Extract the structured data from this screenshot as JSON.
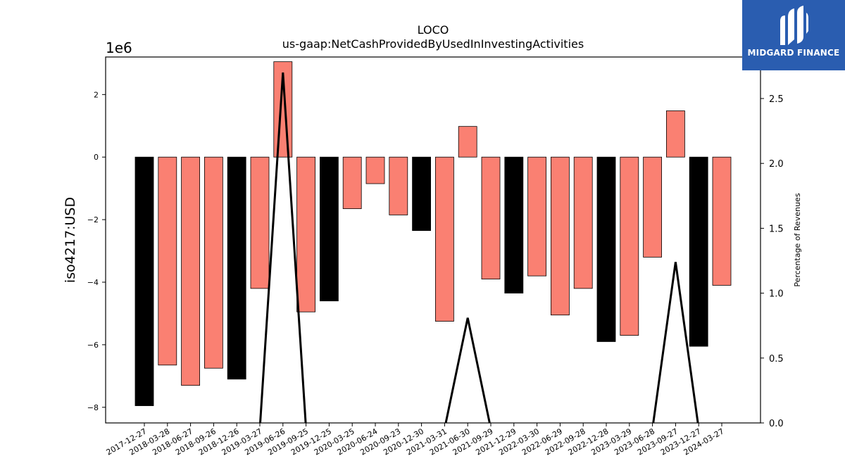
{
  "chart_data": {
    "type": "bar",
    "title": "LOCO",
    "subtitle": "us-gaap:NetCashProvidedByUsedInInvestingActivities",
    "ylabel": "iso4217:USD",
    "y2label": "Percentage of Revenues",
    "y_scale_label": "1e6",
    "ylim": [
      -8.5,
      3.2
    ],
    "y2lim": [
      0,
      2.82
    ],
    "yticks": [
      -8,
      -6,
      -4,
      -2,
      0,
      2
    ],
    "y2ticks": [
      0.0,
      0.5,
      1.0,
      1.5,
      2.0,
      2.5
    ],
    "categories": [
      "2017-12-27",
      "2018-03-28",
      "2018-06-27",
      "2018-09-26",
      "2018-12-26",
      "2019-03-27",
      "2019-06-26",
      "2019-09-25",
      "2019-12-25",
      "2020-03-25",
      "2020-06-24",
      "2020-09-23",
      "2020-12-30",
      "2021-03-31",
      "2021-06-30",
      "2021-09-29",
      "2021-12-29",
      "2022-03-30",
      "2022-06-29",
      "2022-09-28",
      "2022-12-28",
      "2023-03-29",
      "2023-06-28",
      "2023-09-27",
      "2023-12-27",
      "2024-03-27"
    ],
    "series": [
      {
        "type": "bar",
        "values": [
          -7.95,
          -6.65,
          -7.3,
          -6.75,
          -7.1,
          -4.2,
          3.05,
          -4.95,
          -4.6,
          -1.65,
          -0.85,
          -1.85,
          -2.35,
          -5.25,
          0.98,
          -3.9,
          -4.35,
          -3.8,
          -5.05,
          -4.2,
          -5.9,
          -5.7,
          -3.2,
          1.48,
          -6.05,
          -4.1
        ],
        "colors": [
          "#000000",
          "#fa8072",
          "#fa8072",
          "#fa8072",
          "#000000",
          "#fa8072",
          "#fa8072",
          "#fa8072",
          "#000000",
          "#fa8072",
          "#fa8072",
          "#fa8072",
          "#000000",
          "#fa8072",
          "#fa8072",
          "#fa8072",
          "#000000",
          "#fa8072",
          "#fa8072",
          "#fa8072",
          "#000000",
          "#fa8072",
          "#fa8072",
          "#fa8072",
          "#000000",
          "#fa8072"
        ]
      },
      {
        "type": "line",
        "axis": "right",
        "values": [
          null,
          null,
          null,
          null,
          null,
          0,
          2.7,
          0,
          null,
          null,
          null,
          null,
          null,
          0,
          0.81,
          0,
          null,
          null,
          null,
          null,
          null,
          null,
          0,
          1.24,
          0,
          null
        ],
        "color": "#000000"
      }
    ],
    "grid": false
  },
  "logo": {
    "text": "MIDGARD FINANCE",
    "color": "#2a5db0"
  }
}
